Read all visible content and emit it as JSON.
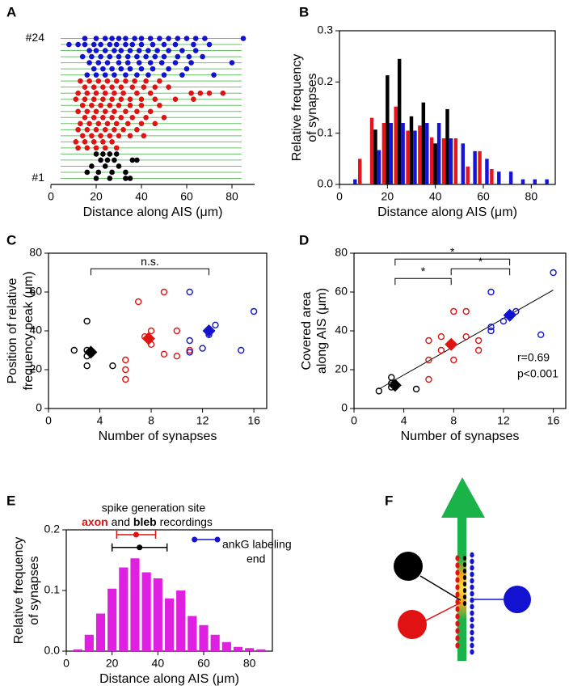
{
  "chart_data": [
    {
      "type": "scatter",
      "panel_label": "A",
      "xlabel": "Distance along AIS (μm)",
      "xlim": [
        0,
        90
      ],
      "xticks": [
        0,
        20,
        40,
        60,
        80
      ],
      "ylim": [
        0,
        25
      ],
      "yticks": [
        {
          "value": 1,
          "label": "#1"
        },
        {
          "value": 24,
          "label": "#24"
        }
      ],
      "row_lines": true,
      "row_line_color": "#66c466",
      "box": false,
      "series": [
        {
          "color": "#1212d0",
          "marker": "dot",
          "x": [
            15,
            20,
            24,
            27,
            30,
            33,
            37,
            40,
            44,
            48,
            52,
            56,
            60,
            64,
            68,
            85,
            8,
            12,
            15,
            19,
            22,
            26,
            29,
            33,
            36,
            40,
            45,
            50,
            55,
            63,
            70,
            17,
            20,
            24,
            28,
            31,
            35,
            39,
            43,
            47,
            52,
            58,
            64,
            14,
            18,
            22,
            26,
            30,
            34,
            38,
            42,
            46,
            50,
            56,
            61,
            67,
            17,
            21,
            25,
            30,
            34,
            39,
            44,
            49,
            55,
            62,
            80,
            19,
            23,
            27,
            31,
            35,
            40,
            45,
            52,
            60,
            16,
            20,
            24,
            28,
            33,
            38,
            43,
            50,
            58,
            72
          ],
          "values": [
            24,
            24,
            24,
            24,
            24,
            24,
            24,
            24,
            24,
            24,
            24,
            24,
            24,
            24,
            24,
            24,
            23,
            23,
            23,
            23,
            23,
            23,
            23,
            23,
            23,
            23,
            23,
            23,
            23,
            23,
            23,
            22,
            22,
            22,
            22,
            22,
            22,
            22,
            22,
            22,
            22,
            22,
            22,
            21,
            21,
            21,
            21,
            21,
            21,
            21,
            21,
            21,
            21,
            21,
            21,
            21,
            20,
            20,
            20,
            20,
            20,
            20,
            20,
            20,
            20,
            20,
            20,
            19,
            19,
            19,
            19,
            19,
            19,
            19,
            19,
            19,
            18,
            18,
            18,
            18,
            18,
            18,
            18,
            18,
            18,
            18
          ]
        },
        {
          "color": "#e01212",
          "marker": "dot",
          "x": [
            13,
            17,
            21,
            25,
            29,
            33,
            37,
            42,
            48,
            15,
            19,
            23,
            27,
            31,
            36,
            41,
            46,
            52,
            12,
            16,
            20,
            24,
            28,
            32,
            38,
            44,
            62,
            66,
            70,
            76,
            11,
            15,
            19,
            23,
            27,
            31,
            35,
            40,
            46,
            55,
            63,
            14,
            18,
            22,
            26,
            30,
            35,
            40,
            48,
            12,
            16,
            20,
            24,
            28,
            33,
            38,
            44,
            15,
            19,
            23,
            27,
            31,
            36,
            42,
            50,
            13,
            17,
            21,
            25,
            29,
            34,
            40,
            46,
            12,
            16,
            20,
            24,
            28,
            32,
            38,
            14,
            18,
            22,
            26,
            30,
            35,
            41,
            11,
            15,
            19,
            23,
            27,
            12,
            16,
            20,
            24,
            29
          ],
          "values": [
            17,
            17,
            17,
            17,
            17,
            17,
            17,
            17,
            17,
            16,
            16,
            16,
            16,
            16,
            16,
            16,
            16,
            16,
            15,
            15,
            15,
            15,
            15,
            15,
            15,
            15,
            15,
            15,
            15,
            15,
            14,
            14,
            14,
            14,
            14,
            14,
            14,
            14,
            14,
            14,
            14,
            13,
            13,
            13,
            13,
            13,
            13,
            13,
            13,
            12,
            12,
            12,
            12,
            12,
            12,
            12,
            12,
            11,
            11,
            11,
            11,
            11,
            11,
            11,
            11,
            10,
            10,
            10,
            10,
            10,
            10,
            10,
            10,
            9,
            9,
            9,
            9,
            9,
            9,
            9,
            8,
            8,
            8,
            8,
            8,
            8,
            8,
            7,
            7,
            7,
            7,
            7,
            6,
            6,
            6,
            6,
            6
          ]
        },
        {
          "color": "#000000",
          "marker": "dot",
          "x": [
            20,
            23,
            26,
            29,
            22,
            25,
            28,
            36,
            38,
            18,
            24,
            30,
            16,
            21,
            27,
            33,
            20,
            26,
            33,
            35
          ],
          "values": [
            5,
            5,
            5,
            5,
            4,
            4,
            4,
            4,
            4,
            3,
            3,
            3,
            2,
            2,
            2,
            2,
            1,
            1,
            1,
            1
          ]
        }
      ]
    },
    {
      "type": "bar",
      "panel_label": "B",
      "xlabel": "Distance along AIS (μm)",
      "ylabel": [
        "Relative frequency",
        "of synapses"
      ],
      "xlim": [
        0,
        90
      ],
      "xticks": [
        0,
        20,
        40,
        60,
        80
      ],
      "ylim": [
        0,
        0.3
      ],
      "yticks": [
        {
          "value": 0,
          "label": "0.0"
        },
        0.1,
        0.2,
        0.3
      ],
      "box": true,
      "x": [
        5,
        10,
        15,
        20,
        25,
        30,
        35,
        40,
        45,
        50,
        55,
        60,
        65,
        70,
        75,
        80,
        85
      ],
      "series": [
        {
          "color": "#e8141c",
          "values": [
            null,
            0.05,
            0.13,
            0.12,
            0.152,
            0.105,
            0.115,
            0.092,
            0.09,
            0.09,
            0.035,
            0.065,
            0.03,
            null,
            null,
            null,
            null
          ]
        },
        {
          "color": "#000000",
          "values": [
            null,
            null,
            0.107,
            0.213,
            0.245,
            0.133,
            0.16,
            0.08,
            0.147,
            null,
            null,
            null,
            null,
            null,
            null,
            null,
            null
          ]
        },
        {
          "color": "#1414d8",
          "values": [
            0.01,
            null,
            0.067,
            0.12,
            0.12,
            0.105,
            0.12,
            0.12,
            0.09,
            0.08,
            0.065,
            0.05,
            0.025,
            0.025,
            0.01,
            0.01,
            0.01
          ]
        }
      ]
    },
    {
      "type": "scatter",
      "panel_label": "C",
      "xlabel": "Number of synapses",
      "ylabel": [
        "Position of relative",
        "frequency peak (μm)"
      ],
      "xlim": [
        0,
        17
      ],
      "xticks": [
        0,
        4,
        8,
        12,
        16
      ],
      "ylim": [
        0,
        80
      ],
      "yticks": [
        0,
        20,
        40,
        60,
        80
      ],
      "box": true,
      "brackets": [
        "n.s."
      ],
      "series": [
        {
          "color": "#000000",
          "marker": "circle-open",
          "x": [
            2,
            3,
            3,
            3,
            3,
            5
          ],
          "values": [
            30,
            45,
            27,
            22,
            30,
            22
          ]
        },
        {
          "color": "#e01212",
          "marker": "circle-open",
          "x": [
            6,
            6,
            6,
            7,
            7.5,
            8,
            8,
            9,
            9,
            10,
            10,
            11
          ],
          "values": [
            25,
            20,
            15,
            55,
            37,
            33,
            40,
            60,
            28,
            27,
            40,
            30
          ]
        },
        {
          "color": "#1212d0",
          "marker": "circle-open",
          "x": [
            11,
            11,
            11,
            12,
            13,
            12.5,
            15,
            16
          ],
          "values": [
            60,
            35,
            29,
            31,
            43,
            38,
            30,
            50
          ]
        },
        {
          "color": "#000000",
          "marker": "diamond",
          "x": [
            3.3
          ],
          "values": [
            29
          ]
        },
        {
          "color": "#e01212",
          "marker": "diamond",
          "x": [
            7.8
          ],
          "values": [
            36
          ]
        },
        {
          "color": "#1212d0",
          "marker": "diamond",
          "x": [
            12.5
          ],
          "values": [
            40
          ]
        }
      ]
    },
    {
      "type": "scatter",
      "panel_label": "D",
      "xlabel": "Number of synapses",
      "ylabel": [
        "Covered area",
        "along AIS (μm)"
      ],
      "xlim": [
        0,
        17
      ],
      "xticks": [
        0,
        4,
        8,
        12,
        16
      ],
      "ylim": [
        0,
        80
      ],
      "yticks": [
        0,
        20,
        40,
        60,
        80
      ],
      "box": true,
      "brackets": [
        "*",
        "*",
        "*"
      ],
      "stats": [
        "r=0.69",
        "p<0.001"
      ],
      "fit": {
        "x": [
          2,
          16
        ],
        "values": [
          10,
          61
        ]
      },
      "series": [
        {
          "color": "#000000",
          "marker": "circle-open",
          "x": [
            2,
            3,
            3,
            3,
            5
          ],
          "values": [
            9,
            16,
            13,
            11,
            10
          ]
        },
        {
          "color": "#e01212",
          "marker": "circle-open",
          "x": [
            6,
            6,
            6,
            7,
            7,
            8,
            8,
            9,
            9,
            10,
            10
          ],
          "values": [
            15,
            25,
            35,
            30,
            37,
            25,
            50,
            50,
            37,
            35,
            30
          ]
        },
        {
          "color": "#1212d0",
          "marker": "circle-open",
          "x": [
            11,
            11,
            11,
            12,
            13,
            15,
            16
          ],
          "values": [
            60,
            42,
            40,
            45,
            50,
            38,
            70
          ]
        },
        {
          "color": "#000000",
          "marker": "diamond",
          "x": [
            3.3
          ],
          "values": [
            12
          ]
        },
        {
          "color": "#e01212",
          "marker": "diamond",
          "x": [
            7.8
          ],
          "values": [
            33
          ]
        },
        {
          "color": "#1212d0",
          "marker": "diamond",
          "x": [
            12.5
          ],
          "values": [
            48
          ]
        }
      ]
    },
    {
      "type": "histogram",
      "panel_label": "E",
      "xlabel": "Distance along AIS (μm)",
      "ylabel": [
        "Relative frequency",
        "of synapses"
      ],
      "xlim": [
        0,
        90
      ],
      "xticks": [
        0,
        20,
        40,
        60,
        80
      ],
      "ylim": [
        0,
        0.2
      ],
      "yticks": [
        {
          "value": 0,
          "label": "0.0"
        },
        0.1,
        0.2
      ],
      "box": true,
      "color": "#e020e0",
      "bins": [
        2.5,
        7.5,
        12.5,
        17.5,
        22.5,
        27.5,
        32.5,
        37.5,
        42.5,
        47.5,
        52.5,
        57.5,
        62.5,
        67.5,
        72.5,
        77.5,
        82.5,
        87.5
      ],
      "values": [
        0.003,
        0.027,
        0.062,
        0.103,
        0.138,
        0.153,
        0.13,
        0.12,
        0.087,
        0.1,
        0.058,
        0.043,
        0.027,
        0.015,
        0.007,
        0.005,
        0.003
      ],
      "annotation": {
        "line1": "spike generation site",
        "line2": [
          "axon",
          "and",
          "bleb",
          "recordings"
        ],
        "ankg": [
          "ankG labeling",
          "end"
        ]
      },
      "errorbars": [
        {
          "color": "#e01212",
          "marker": "center",
          "x": 30.5,
          "xerr": 8.5,
          "y": 0.192
        },
        {
          "color": "#000000",
          "marker": "center",
          "x": 32,
          "xerr": 12,
          "y": 0.171
        },
        {
          "color": "#1212d0",
          "marker": "ends",
          "x": 61,
          "xerr": 5,
          "y": 0.184
        }
      ]
    }
  ],
  "diagram": {
    "panel_label": "F"
  }
}
